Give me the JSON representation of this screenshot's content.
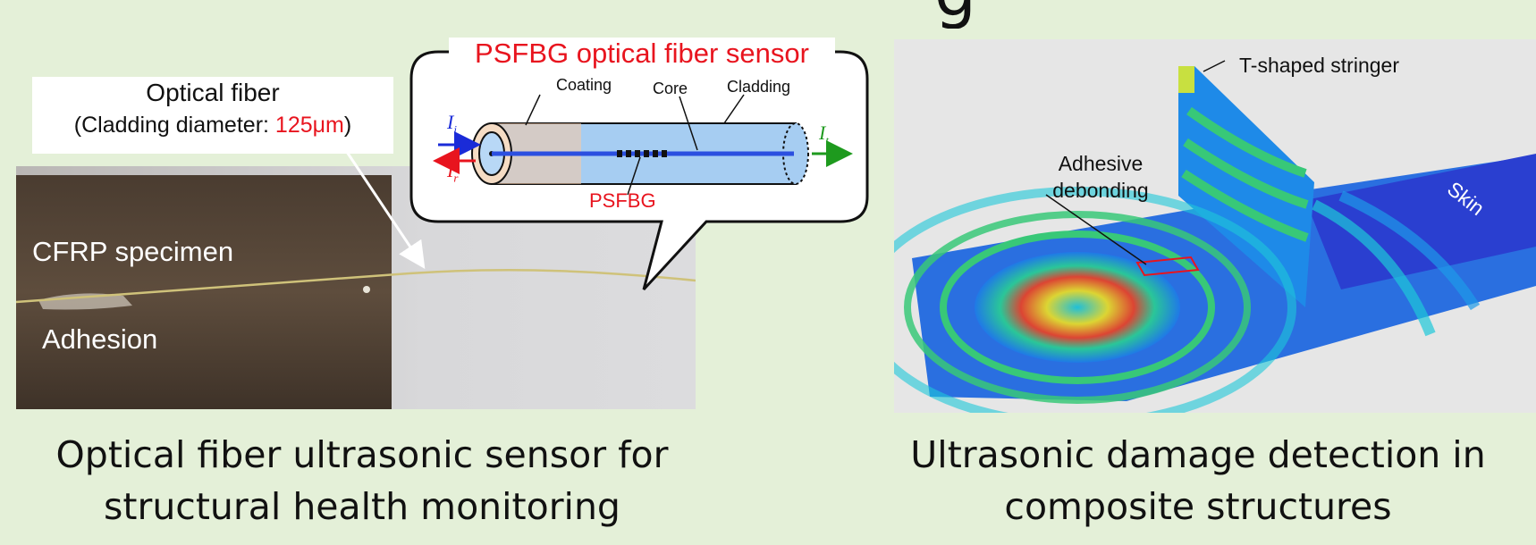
{
  "header": {
    "title_fragment": "g"
  },
  "left_panel": {
    "fiber_callout": {
      "title": "Optical fiber",
      "subtitle_prefix": "(Cladding diameter: ",
      "diameter_value": "125",
      "diameter_unit": "μm",
      "subtitle_suffix": ")"
    },
    "photo_labels": {
      "specimen": "CFRP specimen",
      "adhesion": "Adhesion"
    },
    "sensor_bubble": {
      "title": "PSFBG optical fiber sensor",
      "coating": "Coating",
      "core": "Core",
      "cladding": "Cladding",
      "grating": "PSFBG",
      "incident_symbol": "I",
      "incident_subscript": "i",
      "reflected_symbol": "I",
      "reflected_subscript": "r",
      "transmitted_symbol": "I",
      "transmitted_subscript": "t"
    },
    "caption_line1": "Optical fiber ultrasonic sensor for",
    "caption_line2": "structural health monitoring"
  },
  "right_panel": {
    "labels": {
      "stringer": "T-shaped stringer",
      "debond_line1": "Adhesive",
      "debond_line2": "debonding",
      "skin": "Skin"
    },
    "caption_line1": "Ultrasonic damage detection in",
    "caption_line2": "composite structures"
  },
  "colors": {
    "background": "#e4f0d8",
    "highlight_red": "#e8141e",
    "incident_blue": "#1a2bd8",
    "transmitted_green": "#1e9a1e",
    "skin_blue": "#2a3fd0"
  }
}
